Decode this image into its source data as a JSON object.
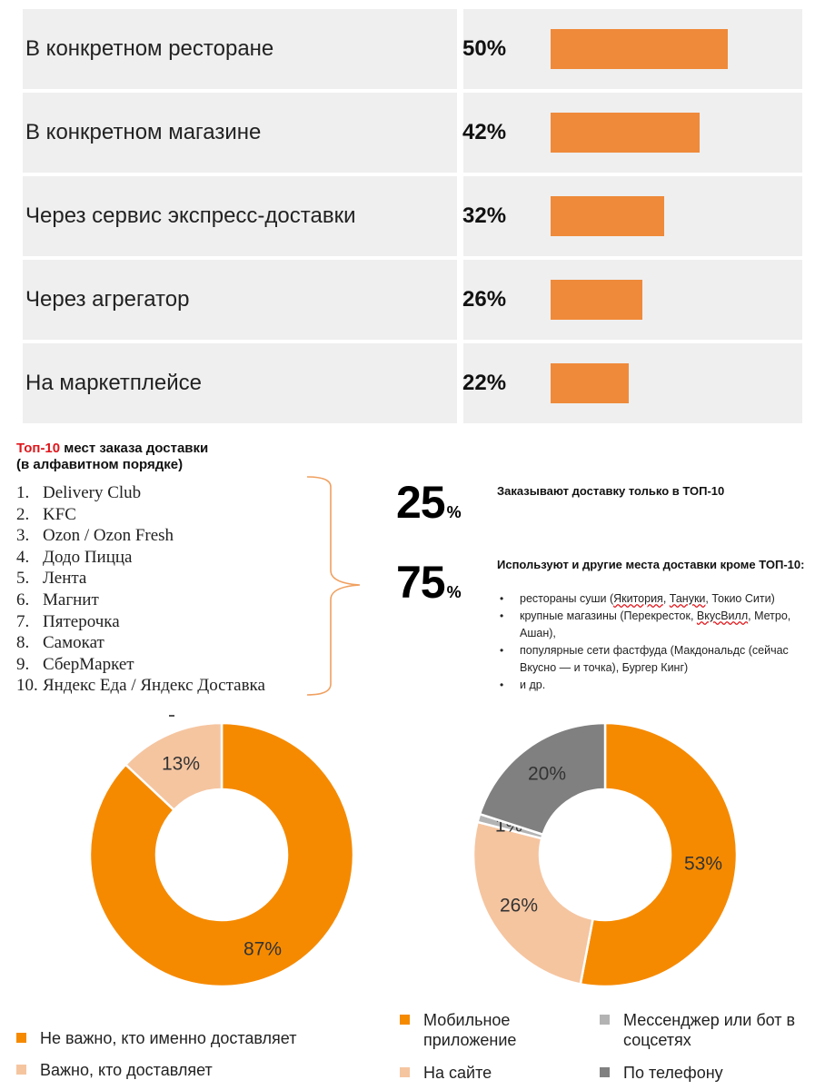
{
  "chart_data": [
    {
      "type": "bar",
      "categories": [
        "В конкретном ресторане",
        "В конкретном магазине",
        "Через сервис экспресс-доставки",
        "Через агрегатор",
        "На маркетплейсе"
      ],
      "values": [
        50,
        42,
        32,
        26,
        22
      ],
      "value_labels": [
        "50%",
        "42%",
        "32%",
        "26%",
        "22%"
      ],
      "orientation": "horizontal",
      "color": "#ef8a3a"
    },
    {
      "type": "pie",
      "style": "donut",
      "labels": [
        "Не важно, кто именно доставляет",
        "Важно, кто доставляет"
      ],
      "values": [
        87,
        13
      ],
      "value_labels": [
        "87%",
        "13%"
      ],
      "colors": [
        "#f58a00",
        "#f5c5a0"
      ],
      "legend": "bottom"
    },
    {
      "type": "pie",
      "style": "donut",
      "labels": [
        "Мобильное приложение",
        "На сайте",
        "Мессенджер или бот в соцсетях",
        "По телефону"
      ],
      "values": [
        53,
        26,
        1,
        20
      ],
      "value_labels": [
        "53%",
        "26%",
        "1%",
        "20%"
      ],
      "colors": [
        "#f58a00",
        "#f5c5a0",
        "#b3b3b3",
        "#808080"
      ],
      "legend": "bottom"
    }
  ],
  "top10": {
    "title_highlight": "Топ-10",
    "title_rest": " мест заказа доставки",
    "subtitle": "(в алфавитном порядке)",
    "items": [
      {
        "num": "1.",
        "name": "Delivery Club"
      },
      {
        "num": "2.",
        "name": "KFC"
      },
      {
        "num": "3.",
        "name": "Ozon / Ozon Fresh"
      },
      {
        "num": "4.",
        "name": "Додо Пицца"
      },
      {
        "num": "5.",
        "name": "Лента"
      },
      {
        "num": "6.",
        "name": "Магнит"
      },
      {
        "num": "7.",
        "name": "Пятерочка"
      },
      {
        "num": "8.",
        "name": "Самокат"
      },
      {
        "num": "9.",
        "name": "СберМаркет"
      },
      {
        "num": "10.",
        "name": "Яндекс Еда / Яндекс Доставка"
      }
    ]
  },
  "stats": {
    "s25": {
      "value": "25",
      "symbol": "%",
      "text": "Заказывают доставку только в ТОП-10"
    },
    "s75": {
      "value": "75",
      "symbol": "%",
      "text": "Используют и другие места доставки кроме ТОП-10:"
    },
    "others": [
      {
        "a": "рестораны суши (",
        "u1": "Якитория",
        "b": ", ",
        "u2": "Тануки",
        "c": ", Токио Сити)"
      },
      {
        "a": "крупные магазины (Перекресток, ",
        "u1": "ВкусВилл",
        "b": ", Метро, Ашан),",
        "u2": "",
        "c": ""
      },
      {
        "a": "популярные сети фастфуда (Макдональдс (сейчас Вкусно — и точка), Бургер Кинг)",
        "u1": "",
        "b": "",
        "u2": "",
        "c": ""
      },
      {
        "a": "и др.",
        "u1": "",
        "b": "",
        "u2": "",
        "c": ""
      }
    ]
  }
}
